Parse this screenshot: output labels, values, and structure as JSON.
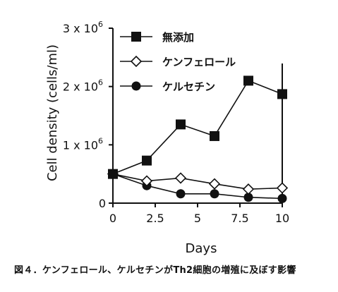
{
  "chart_data": {
    "type": "line",
    "xlabel": "Days",
    "ylabel": "Cell density (cells/ml)",
    "xlim": [
      0,
      10
    ],
    "ylim": [
      0,
      3000000
    ],
    "x_ticks": [
      "0",
      "2.5",
      "5",
      "7.5",
      "10"
    ],
    "y_ticks": [
      {
        "value": 0,
        "base": "0",
        "exp": ""
      },
      {
        "value": 1000000,
        "base": "1 x 10",
        "exp": "6"
      },
      {
        "value": 2000000,
        "base": "2 x 10",
        "exp": "6"
      },
      {
        "value": 3000000,
        "base": "3 x 10",
        "exp": "6"
      }
    ],
    "grid": false,
    "legend_position": "top-left",
    "series": [
      {
        "name": "無添加",
        "marker": "filled-square",
        "x": [
          0,
          2,
          4,
          6,
          8,
          10
        ],
        "y": [
          500000,
          730000,
          1350000,
          1150000,
          2100000,
          1870000
        ]
      },
      {
        "name": "ケンフェロール",
        "marker": "open-diamond",
        "x": [
          0,
          2,
          4,
          6,
          8,
          10
        ],
        "y": [
          500000,
          380000,
          430000,
          330000,
          240000,
          260000
        ]
      },
      {
        "name": "ケルセチン",
        "marker": "filled-circle",
        "x": [
          0,
          2,
          4,
          6,
          8,
          10
        ],
        "y": [
          500000,
          300000,
          160000,
          160000,
          100000,
          80000
        ]
      }
    ]
  },
  "caption": "図４．ケンフェロール、ケルセチンがTh2細胞の増殖に及ぼす影響"
}
